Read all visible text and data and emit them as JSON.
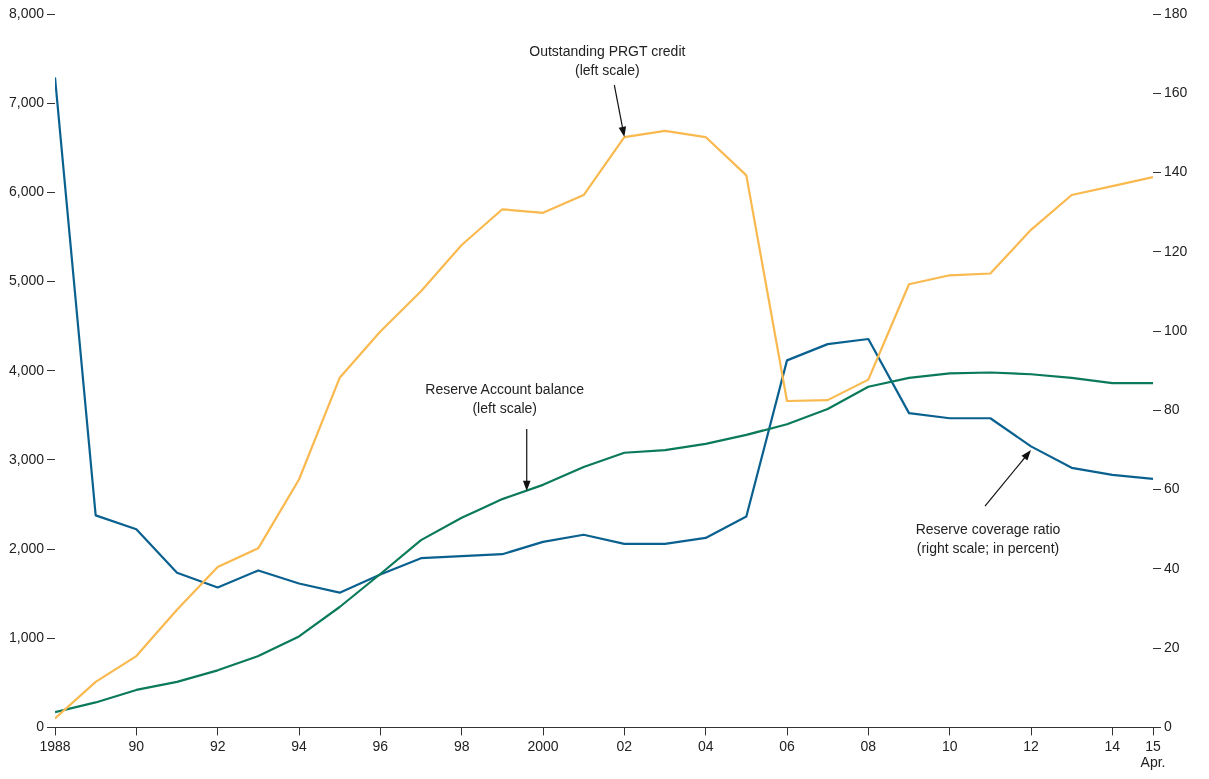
{
  "chart_data": {
    "type": "line",
    "x": [
      1988,
      1989,
      1990,
      1991,
      1992,
      1993,
      1994,
      1995,
      1996,
      1997,
      1998,
      1999,
      2000,
      2001,
      2002,
      2003,
      2004,
      2005,
      2006,
      2007,
      2008,
      2009,
      2010,
      2011,
      2012,
      2013,
      2014,
      2015
    ],
    "series": [
      {
        "color": "#f9b94f",
        "values": [
          100,
          510,
          800,
          1320,
          1800,
          2010,
          2780,
          3920,
          4440,
          4890,
          5410,
          5810,
          5770,
          5970,
          6620,
          6690,
          6620,
          6190,
          3660,
          3670,
          3900,
          4970,
          5070,
          5090,
          5580,
          5970,
          6070,
          6170
        ]
      },
      {
        "color": "#0b7a5b",
        "values": [
          170,
          280,
          420,
          510,
          640,
          800,
          1020,
          1350,
          1720,
          2100,
          2350,
          2560,
          2720,
          2920,
          3080,
          3110,
          3180,
          3280,
          3400,
          3570,
          3820,
          3920,
          3970,
          3980,
          3960,
          3920,
          3860,
          3860
        ]
      },
      {
        "color": "#0a6190",
        "axis": "y2",
        "values": [
          164,
          53.5,
          50,
          39,
          35.3,
          39.6,
          36.3,
          34,
          38.6,
          42.7,
          43.2,
          43.7,
          46.8,
          48.6,
          46.3,
          46.3,
          47.8,
          53.2,
          92.6,
          96.7,
          98,
          79.3,
          78,
          78,
          70.9,
          65.5,
          63.7,
          62.7
        ]
      }
    ],
    "xlim": [
      1988,
      2015
    ],
    "xticks": [
      1988,
      {
        "value": 1990,
        "label": "90"
      },
      {
        "value": 1992,
        "label": "92"
      },
      {
        "value": 1994,
        "label": "94"
      },
      {
        "value": 1996,
        "label": "96"
      },
      {
        "value": 1998,
        "label": "98"
      },
      2000,
      {
        "value": 2002,
        "label": "02"
      },
      {
        "value": 2004,
        "label": "04"
      },
      {
        "value": 2006,
        "label": "06"
      },
      {
        "value": 2008,
        "label": "08"
      },
      {
        "value": 2010,
        "label": "10"
      },
      {
        "value": 2012,
        "label": "12"
      },
      {
        "value": 2014,
        "label": "14"
      },
      {
        "value": 2015,
        "label": "15\nApr."
      }
    ],
    "ylim": [
      0,
      8000
    ],
    "yticks": [
      0,
      {
        "value": 1000,
        "label": "1,000"
      },
      {
        "value": 2000,
        "label": "2,000"
      },
      {
        "value": 3000,
        "label": "3,000"
      },
      {
        "value": 4000,
        "label": "4,000"
      },
      {
        "value": 5000,
        "label": "5,000"
      },
      {
        "value": 6000,
        "label": "6,000"
      },
      {
        "value": 7000,
        "label": "7,000"
      },
      {
        "value": 8000,
        "label": "8,000"
      }
    ],
    "y2lim": [
      0,
      180
    ],
    "y2ticks": [
      0,
      20,
      40,
      60,
      80,
      100,
      120,
      140,
      160,
      180
    ],
    "annotations": [
      {
        "text": "Outstanding PRGT credit\n(left scale)",
        "x": 2002,
        "y": 6620
      },
      {
        "text": "Reserve Account balance\n(left scale)",
        "x": 1999.6,
        "y": 2650
      },
      {
        "text": "Reserve coverage ratio\n(right scale; in percent)",
        "x": 2012,
        "y": 3110
      }
    ],
    "grid": false,
    "legend": false,
    "marker": "none",
    "line_style": "solid"
  }
}
